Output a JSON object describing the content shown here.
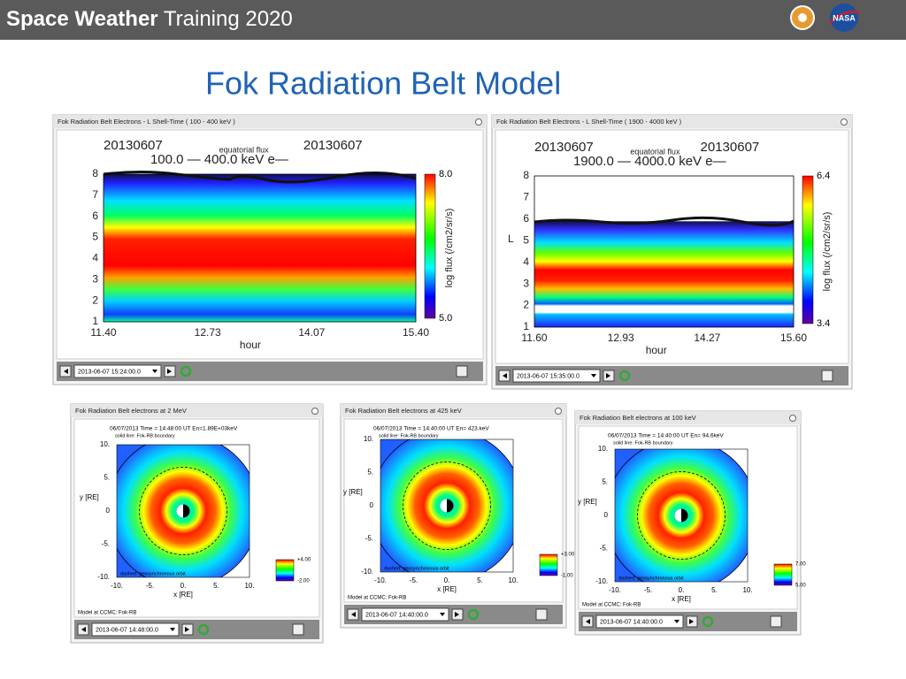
{
  "header": {
    "title_bold": "Space Weather",
    "title_rest": "Training 2020"
  },
  "slide_title": "Fok Radiation Belt Model",
  "panels": [
    {
      "window_title": "Fok Radiation Belt Electrons - L Shell-Time ( 100 - 400 keV )",
      "date_left": "20130607",
      "flux_label": "equatorial flux",
      "date_right": "20130607",
      "energy": "100.0 — 400.0 keV e—",
      "y_ticks": [
        "8",
        "7",
        "6",
        "5",
        "4",
        "3",
        "2",
        "1"
      ],
      "x_ticks": [
        "11.40",
        "12.73",
        "14.07",
        "15.40"
      ],
      "x_label": "hour",
      "cbar_max": "8.0",
      "cbar_min": "5.0",
      "cbar_label": "log flux (/cm2/sr/s)",
      "time": "2013-06-07 15:24:00.0"
    },
    {
      "window_title": "Fok Radiation Belt Electrons - L Shell-Time ( 1900 - 4000 keV )",
      "date_left": "20130607",
      "flux_label": "equatorial flux",
      "date_right": "20130607",
      "energy": "1900.0 — 4000.0 keV e—",
      "y_label": "L",
      "y_ticks": [
        "8",
        "7",
        "6",
        "5",
        "4",
        "3",
        "2",
        "1"
      ],
      "x_ticks": [
        "11.60",
        "12.93",
        "14.27",
        "15.60"
      ],
      "x_label": "hour",
      "cbar_max": "6.4",
      "cbar_min": "3.4",
      "cbar_label": "log flux (/cm2/sr/s)",
      "time": "2013-06-07 15:35:00.0"
    },
    {
      "window_title": "Fok Radiation Belt electrons at 2 MeV",
      "subtitle": "06/07/2013 Time = 14:48:00 UT En=1.89E+03keV",
      "solid_note": "solid line: Fok-RB boundary",
      "y_label": "y [RE]",
      "y_ticks": [
        "10.",
        "5.",
        "0",
        "-5.",
        "-10."
      ],
      "x_ticks": [
        "-10.",
        "-5.",
        "0.",
        "5.",
        "10."
      ],
      "x_label": "x [RE]",
      "dashed_note": "dashed: geosynchronous orbit",
      "model_note": "Model at CCMC: Fok-RB",
      "cbar_max": "+4.00",
      "cbar_min": "-2.00",
      "time": "2013-06-07 14:48:00.0"
    },
    {
      "window_title": "Fok Radiation Belt electrons at 425 keV",
      "subtitle": "06/07/2013 Time = 14:40:00 UT En= 423.keV",
      "solid_note": "solid line: Fok-RB boundary",
      "y_label": "y [RE]",
      "y_ticks": [
        "10.",
        "5.",
        "0",
        "-5.",
        "-10."
      ],
      "x_ticks": [
        "-10.",
        "-5.",
        "0.",
        "5.",
        "10."
      ],
      "x_label": "x [RE]",
      "dashed_note": "dashed: geosynchronous orbit",
      "model_note": "Model at CCMC: Fok-RB",
      "cbar_max": "+3.00",
      "cbar_min": "-1.00",
      "time": "2013-06-07 14:40:00.0"
    },
    {
      "window_title": "Fok Radiation Belt electrons at 100 keV",
      "subtitle": "06/07/2013 Time = 14:40:00 UT En= 94.6keV",
      "solid_note": "solid line: Fok-RB boundary",
      "y_label": "y [RE]",
      "y_ticks": [
        "10.",
        "5.",
        "0",
        "-5.",
        "-10."
      ],
      "x_ticks": [
        "-10.",
        "-5.",
        "0.",
        "5.",
        "10."
      ],
      "x_label": "x [RE]",
      "dashed_note": "dashed: geosynchronous orbit",
      "model_note": "Model at CCMC: Fok-RB",
      "cbar_max": "7.00",
      "cbar_min": "5.00",
      "time": "2013-06-07 14:40:00.0"
    }
  ]
}
